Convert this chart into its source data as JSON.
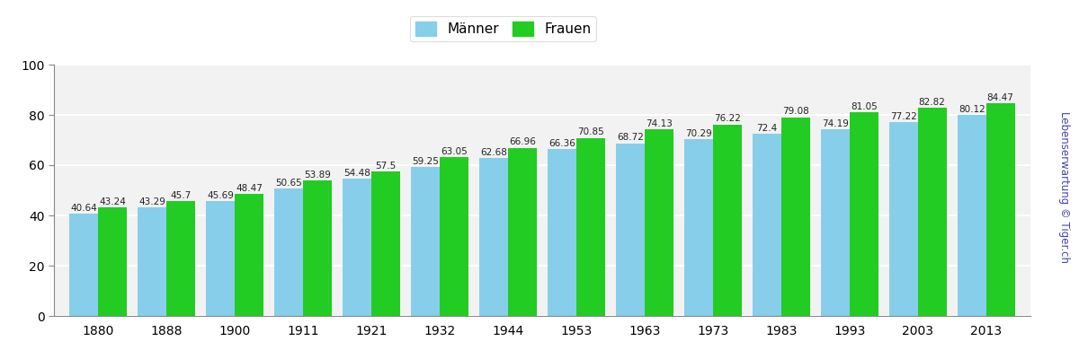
{
  "years": [
    "1880",
    "1888",
    "1900",
    "1911",
    "1921",
    "1932",
    "1944",
    "1953",
    "1963",
    "1973",
    "1983",
    "1993",
    "2003",
    "2013"
  ],
  "maenner": [
    40.64,
    43.29,
    45.69,
    50.65,
    54.48,
    59.25,
    62.68,
    66.36,
    68.72,
    70.29,
    72.4,
    74.19,
    77.22,
    80.12
  ],
  "frauen": [
    43.24,
    45.7,
    48.47,
    53.89,
    57.5,
    63.05,
    66.96,
    70.85,
    74.13,
    76.22,
    79.08,
    81.05,
    82.82,
    84.47
  ],
  "maenner_color": "#87CEEB",
  "frauen_color": "#22CC22",
  "bg_color": "#FFFFFF",
  "plot_bg_color": "#F2F2F2",
  "ylim": [
    0,
    100
  ],
  "yticks": [
    0,
    20,
    40,
    60,
    80,
    100
  ],
  "legend_maenner": "Männer",
  "legend_frauen": "Frauen",
  "watermark": "Lebenserwartung © Tiger.ch",
  "label_fontsize": 7.5,
  "tick_fontsize": 10,
  "bar_width": 0.42
}
